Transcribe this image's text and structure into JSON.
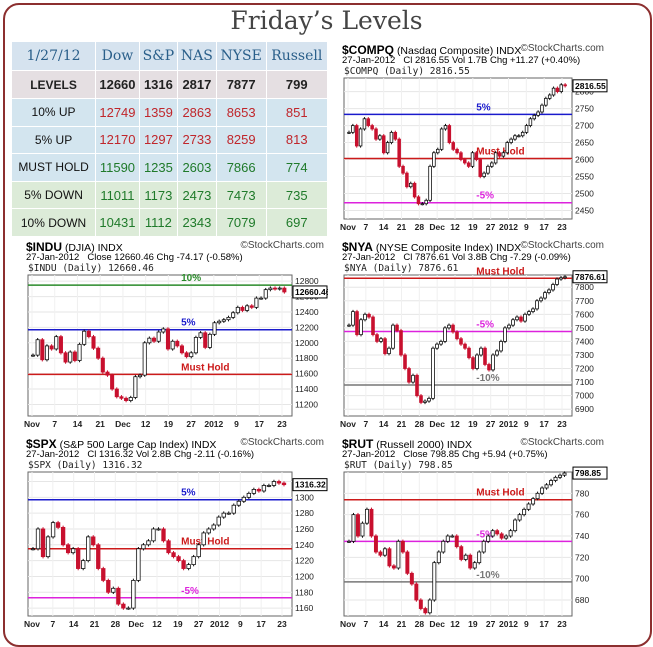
{
  "page": {
    "title": "Friday’s Levels"
  },
  "levels_table": {
    "header": [
      "1/27/12",
      "Dow",
      "S&P",
      "NAS",
      "NYSE",
      "Russell"
    ],
    "rows": [
      {
        "label": "LEVELS",
        "values": [
          "12660",
          "1316",
          "2817",
          "7877",
          "799"
        ]
      },
      {
        "label": "10% UP",
        "values": [
          "12749",
          "1359",
          "2863",
          "8653",
          "851"
        ]
      },
      {
        "label": "5% UP",
        "values": [
          "12170",
          "1297",
          "2733",
          "8259",
          "813"
        ]
      },
      {
        "label": "MUST HOLD",
        "values": [
          "11590",
          "1235",
          "2603",
          "7866",
          "774"
        ]
      },
      {
        "label": "5% DOWN",
        "values": [
          "11011",
          "1173",
          "2473",
          "7473",
          "735"
        ]
      },
      {
        "label": "10% DOWN",
        "values": [
          "10431",
          "1112",
          "2343",
          "7079",
          "697"
        ]
      }
    ],
    "colors": {
      "up": "#c0262b",
      "down": "#1f7a2a"
    }
  },
  "charts": [
    {
      "id": "indu",
      "symbol": "$INDU",
      "name": "(DJIA)",
      "exchange": "INDX",
      "brand": "©StockCharts.com",
      "date": "27-Jan-2012",
      "quote": "Close 12660.46  Chg -74.17 (-0.58%)",
      "legend": "$INDU (Daily) 12660.46",
      "last_label": "12660.46"
    },
    {
      "id": "compq",
      "symbol": "$COMPQ",
      "name": "(Nasdaq Composite)",
      "exchange": "INDX",
      "brand": "©StockCharts.com",
      "date": "27-Jan-2012",
      "quote": "Cl 2816.55  Vol 1.7B  Chg +11.27 (+0.40%)",
      "legend": "$COMPQ (Daily) 2816.55",
      "last_label": "2816.55"
    },
    {
      "id": "nya",
      "symbol": "$NYA",
      "name": "(NYSE Composite Index)",
      "exchange": "INDX",
      "brand": "©StockCharts.com",
      "date": "27-Jan-2012",
      "quote": "Cl 7876.61  Vol 3.8B  Chg -7.29 (-0.09%)",
      "legend": "$NYA (Daily) 7876.61",
      "last_label": "7876.61"
    },
    {
      "id": "spx",
      "symbol": "$SPX",
      "name": "(S&P 500 Large Cap Index)",
      "exchange": "INDX",
      "brand": "©StockCharts.com",
      "date": "27-Jan-2012",
      "quote": "Cl 1316.32  Vol 2.8B  Chg -2.11 (-0.16%)",
      "legend": "$SPX (Daily) 1316.32",
      "last_label": "1316.32"
    },
    {
      "id": "rut",
      "symbol": "$RUT",
      "name": "(Russell 2000)",
      "exchange": "INDX",
      "brand": "©StockCharts.com",
      "date": "27-Jan-2012",
      "quote": "Close 798.85  Chg +5.94 (+0.75%)",
      "legend": "$RUT (Daily) 798.85",
      "last_label": "798.85"
    }
  ],
  "chart_data": [
    {
      "type": "line",
      "chart": "indu",
      "title": "$INDU (DJIA)",
      "x_labels": [
        "Nov",
        "7",
        "14",
        "21",
        "Dec",
        "12",
        "19",
        "27",
        "2012",
        "9",
        "17",
        "23"
      ],
      "y_ticks": [
        11200,
        11400,
        11600,
        11800,
        12000,
        12200,
        12400,
        12600,
        12800
      ],
      "ylim": [
        11050,
        12880
      ],
      "levels": [
        {
          "label": "10%",
          "value": 12749,
          "color": "#2a8a2a"
        },
        {
          "label": "5%",
          "value": 12170,
          "color": "#1a1acc"
        },
        {
          "label": "Must Hold",
          "value": 11590,
          "color": "#cc1a1a"
        }
      ],
      "closes": [
        11840,
        12040,
        11780,
        11960,
        11920,
        12080,
        11870,
        11750,
        11880,
        11770,
        11980,
        12150,
        12080,
        11930,
        11800,
        11620,
        11580,
        11400,
        11300,
        11280,
        11250,
        11290,
        11560,
        11580,
        12000,
        12060,
        12020,
        12140,
        12180,
        11920,
        12020,
        11960,
        11870,
        11820,
        11870,
        12070,
        12130,
        11940,
        12110,
        12260,
        12280,
        12300,
        12330,
        12390,
        12460,
        12420,
        12480,
        12460,
        12580,
        12580,
        12690,
        12710,
        12700,
        12710,
        12660
      ]
    },
    {
      "type": "line",
      "chart": "compq",
      "title": "$COMPQ (Nasdaq Composite)",
      "x_labels": [
        "Nov",
        "7",
        "14",
        "21",
        "28",
        "Dec",
        "12",
        "19",
        "27",
        "2012",
        "9",
        "17",
        "23"
      ],
      "y_ticks": [
        2450,
        2500,
        2550,
        2600,
        2650,
        2700,
        2750,
        2800
      ],
      "ylim": [
        2425,
        2840
      ],
      "levels": [
        {
          "label": "5%",
          "value": 2733,
          "color": "#1a1acc"
        },
        {
          "label": "Must Hold",
          "value": 2603,
          "color": "#cc1a1a"
        },
        {
          "label": "-5%",
          "value": 2473,
          "color": "#dd22dd"
        }
      ],
      "closes": [
        2680,
        2700,
        2640,
        2690,
        2720,
        2700,
        2690,
        2660,
        2670,
        2620,
        2650,
        2680,
        2660,
        2580,
        2560,
        2520,
        2530,
        2490,
        2470,
        2470,
        2480,
        2580,
        2620,
        2630,
        2690,
        2700,
        2650,
        2630,
        2620,
        2600,
        2590,
        2580,
        2620,
        2600,
        2550,
        2560,
        2580,
        2590,
        2620,
        2610,
        2620,
        2650,
        2660,
        2670,
        2670,
        2680,
        2700,
        2720,
        2730,
        2740,
        2760,
        2780,
        2790,
        2810,
        2800,
        2820,
        2817
      ]
    },
    {
      "type": "line",
      "chart": "nya",
      "title": "$NYA (NYSE Composite Index)",
      "x_labels": [
        "Nov",
        "7",
        "14",
        "21",
        "28",
        "Dec",
        "12",
        "19",
        "27",
        "2012",
        "9",
        "17",
        "23"
      ],
      "y_ticks": [
        6900,
        7000,
        7100,
        7200,
        7300,
        7400,
        7500,
        7600,
        7700,
        7800
      ],
      "ylim": [
        6850,
        7890
      ],
      "levels": [
        {
          "label": "Must Hold",
          "value": 7866,
          "color": "#cc1a1a"
        },
        {
          "label": "-5%",
          "value": 7473,
          "color": "#dd22dd"
        },
        {
          "label": "-10%",
          "value": 7079,
          "color": "#777777"
        }
      ],
      "closes": [
        7520,
        7620,
        7450,
        7560,
        7600,
        7580,
        7450,
        7400,
        7420,
        7310,
        7350,
        7520,
        7480,
        7300,
        7200,
        7100,
        7150,
        7000,
        6950,
        6960,
        6980,
        7350,
        7380,
        7400,
        7500,
        7520,
        7470,
        7420,
        7380,
        7350,
        7280,
        7200,
        7300,
        7350,
        7230,
        7190,
        7300,
        7330,
        7400,
        7500,
        7520,
        7560,
        7580,
        7550,
        7600,
        7620,
        7640,
        7700,
        7720,
        7760,
        7780,
        7820,
        7860,
        7870,
        7877
      ]
    },
    {
      "type": "line",
      "chart": "spx",
      "title": "$SPX (S&P 500 Large Cap Index)",
      "x_labels": [
        "Nov",
        "7",
        "14",
        "21",
        "28",
        "Dec",
        "12",
        "19",
        "27",
        "2012",
        "9",
        "17",
        "23"
      ],
      "y_ticks": [
        1160,
        1180,
        1200,
        1220,
        1240,
        1260,
        1280,
        1300,
        1320
      ],
      "ylim": [
        1150,
        1332
      ],
      "levels": [
        {
          "label": "5%",
          "value": 1297,
          "color": "#1a1acc"
        },
        {
          "label": "Must Hold",
          "value": 1235,
          "color": "#cc1a1a"
        },
        {
          "label": "-5%",
          "value": 1173,
          "color": "#dd22dd"
        }
      ],
      "closes": [
        1235,
        1260,
        1225,
        1250,
        1268,
        1262,
        1240,
        1230,
        1235,
        1210,
        1220,
        1250,
        1240,
        1210,
        1195,
        1180,
        1185,
        1165,
        1160,
        1160,
        1195,
        1235,
        1240,
        1245,
        1260,
        1260,
        1245,
        1230,
        1225,
        1220,
        1210,
        1215,
        1225,
        1240,
        1255,
        1260,
        1265,
        1275,
        1280,
        1280,
        1290,
        1295,
        1300,
        1305,
        1310,
        1308,
        1315,
        1315,
        1320,
        1318,
        1316
      ]
    },
    {
      "type": "line",
      "chart": "rut",
      "title": "$RUT (Russell 2000)",
      "x_labels": [
        "Nov",
        "7",
        "14",
        "21",
        "28",
        "Dec",
        "12",
        "19",
        "27",
        "2012",
        "9",
        "17",
        "23"
      ],
      "y_ticks": [
        680,
        700,
        720,
        740,
        760,
        780
      ],
      "ylim": [
        665,
        800
      ],
      "levels": [
        {
          "label": "Must Hold",
          "value": 774,
          "color": "#cc1a1a"
        },
        {
          "label": "-5%",
          "value": 735,
          "color": "#dd22dd"
        },
        {
          "label": "-10%",
          "value": 697,
          "color": "#777777"
        }
      ],
      "closes": [
        735,
        760,
        740,
        752,
        765,
        740,
        725,
        722,
        728,
        712,
        710,
        735,
        725,
        705,
        695,
        680,
        672,
        668,
        680,
        715,
        725,
        735,
        740,
        740,
        730,
        718,
        722,
        710,
        715,
        725,
        735,
        740,
        745,
        742,
        738,
        740,
        745,
        755,
        760,
        765,
        770,
        775,
        780,
        785,
        788,
        792,
        795,
        797,
        799
      ]
    }
  ]
}
